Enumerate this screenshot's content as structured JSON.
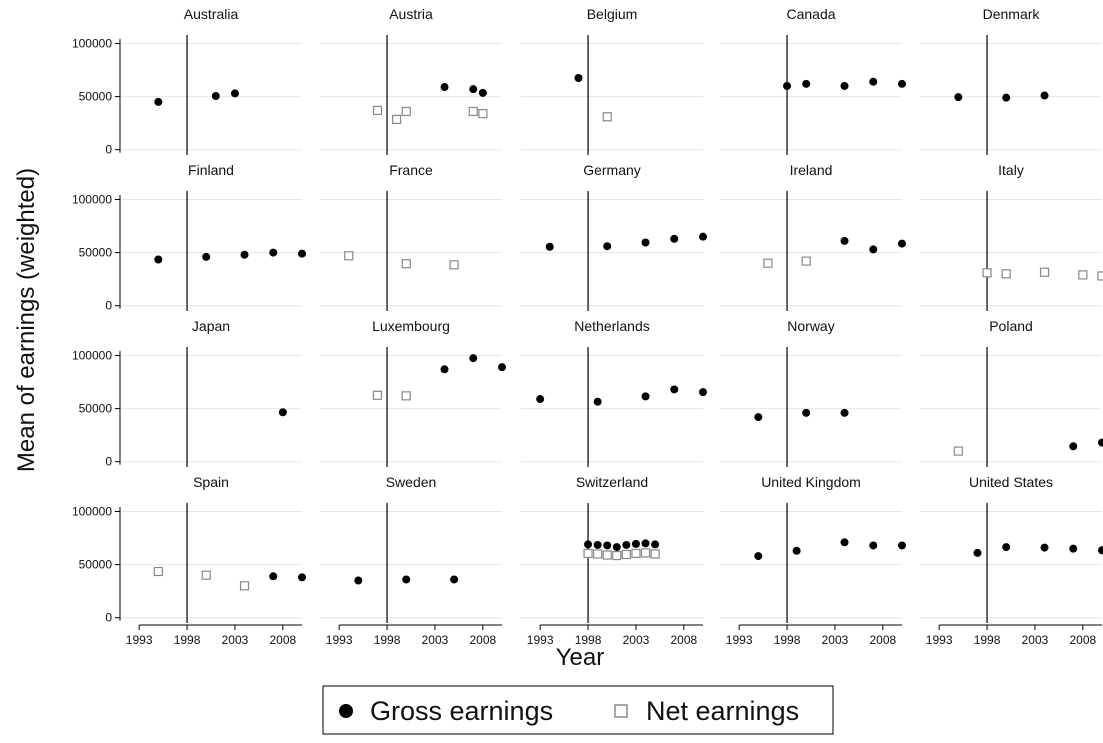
{
  "chart_data": {
    "type": "scatter",
    "layout": "small-multiples 4x5",
    "xlabel": "Year",
    "ylabel": "Mean of earnings (weighted)",
    "xlim": [
      1991,
      2010
    ],
    "ylim": [
      -5000,
      108000
    ],
    "xticks": [
      1993,
      1998,
      2003,
      2008
    ],
    "yticks": [
      0,
      50000,
      100000
    ],
    "grid": "horizontal at y ticks",
    "reference_line_x": 1998,
    "legend": {
      "position": "bottom",
      "entries": [
        {
          "label": "Gross earnings",
          "marker": "filled-circle",
          "color": "#000000"
        },
        {
          "label": "Net earnings",
          "marker": "hollow-square",
          "color": "#888888"
        }
      ]
    },
    "panels": [
      {
        "country": "Australia",
        "gross": [
          [
            1995,
            45000
          ],
          [
            2001,
            50500
          ],
          [
            2003,
            53000
          ]
        ],
        "net": []
      },
      {
        "country": "Austria",
        "gross": [
          [
            2004,
            59000
          ],
          [
            2007,
            57000
          ],
          [
            2008,
            53500
          ]
        ],
        "net": [
          [
            1997,
            37000
          ],
          [
            1999,
            28500
          ],
          [
            2000,
            36000
          ],
          [
            2007,
            36000
          ],
          [
            2008,
            34000
          ]
        ]
      },
      {
        "country": "Belgium",
        "gross": [
          [
            1997,
            67500
          ]
        ],
        "net": [
          [
            2000,
            31000
          ]
        ]
      },
      {
        "country": "Canada",
        "gross": [
          [
            1998,
            60000
          ],
          [
            2000,
            62000
          ],
          [
            2004,
            60000
          ],
          [
            2007,
            64000
          ],
          [
            2010,
            62000
          ]
        ],
        "net": []
      },
      {
        "country": "Denmark",
        "gross": [
          [
            1995,
            49500
          ],
          [
            2000,
            49000
          ],
          [
            2004,
            51000
          ]
        ],
        "net": []
      },
      {
        "country": "Finland",
        "gross": [
          [
            1995,
            43500
          ],
          [
            2000,
            46000
          ],
          [
            2004,
            48000
          ],
          [
            2007,
            50000
          ],
          [
            2010,
            49000
          ]
        ],
        "net": []
      },
      {
        "country": "France",
        "gross": [],
        "net": [
          [
            1994,
            47000
          ],
          [
            2000,
            39500
          ],
          [
            2005,
            38500
          ]
        ]
      },
      {
        "country": "Germany",
        "gross": [
          [
            1994,
            55500
          ],
          [
            2000,
            56000
          ],
          [
            2004,
            59500
          ],
          [
            2007,
            63000
          ],
          [
            2010,
            65000
          ]
        ],
        "net": []
      },
      {
        "country": "Ireland",
        "gross": [
          [
            2004,
            61000
          ],
          [
            2007,
            53000
          ],
          [
            2010,
            58500
          ]
        ],
        "net": [
          [
            1996,
            40000
          ],
          [
            2000,
            42000
          ]
        ]
      },
      {
        "country": "Italy",
        "gross": [],
        "net": [
          [
            1998,
            31000
          ],
          [
            2000,
            30000
          ],
          [
            2004,
            31500
          ],
          [
            2008,
            29000
          ],
          [
            2010,
            28000
          ]
        ]
      },
      {
        "country": "Japan",
        "gross": [
          [
            2008,
            46500
          ]
        ],
        "net": []
      },
      {
        "country": "Luxembourg",
        "gross": [
          [
            2004,
            87000
          ],
          [
            2007,
            97500
          ],
          [
            2010,
            89000
          ]
        ],
        "net": [
          [
            1997,
            62500
          ],
          [
            2000,
            62000
          ]
        ]
      },
      {
        "country": "Netherlands",
        "gross": [
          [
            1993,
            59000
          ],
          [
            1999,
            56500
          ],
          [
            2004,
            61500
          ],
          [
            2007,
            68000
          ],
          [
            2010,
            65500
          ]
        ],
        "net": []
      },
      {
        "country": "Norway",
        "gross": [
          [
            1995,
            42000
          ],
          [
            2000,
            46000
          ],
          [
            2004,
            46000
          ]
        ],
        "net": []
      },
      {
        "country": "Poland",
        "gross": [
          [
            2007,
            14500
          ],
          [
            2010,
            18000
          ]
        ],
        "net": [
          [
            1995,
            10000
          ]
        ]
      },
      {
        "country": "Spain",
        "gross": [
          [
            2007,
            39000
          ],
          [
            2010,
            38000
          ]
        ],
        "net": [
          [
            1995,
            43500
          ],
          [
            2000,
            40000
          ],
          [
            2004,
            30000
          ]
        ]
      },
      {
        "country": "Sweden",
        "gross": [
          [
            1995,
            35000
          ],
          [
            2000,
            36000
          ],
          [
            2005,
            36000
          ]
        ],
        "net": []
      },
      {
        "country": "Switzerland",
        "gross": [
          [
            1998,
            69000
          ],
          [
            1999,
            68500
          ],
          [
            2000,
            68000
          ],
          [
            2001,
            66500
          ],
          [
            2002,
            68500
          ],
          [
            2003,
            69500
          ],
          [
            2004,
            70000
          ],
          [
            2005,
            69000
          ]
        ],
        "net": [
          [
            1998,
            60500
          ],
          [
            1999,
            60000
          ],
          [
            2000,
            59000
          ],
          [
            2001,
            58500
          ],
          [
            2002,
            59500
          ],
          [
            2003,
            60500
          ],
          [
            2004,
            61000
          ],
          [
            2005,
            60000
          ]
        ]
      },
      {
        "country": "United Kingdom",
        "gross": [
          [
            1995,
            58000
          ],
          [
            1999,
            63000
          ],
          [
            2004,
            71000
          ],
          [
            2007,
            68000
          ],
          [
            2010,
            68000
          ]
        ],
        "net": []
      },
      {
        "country": "United States",
        "gross": [
          [
            1997,
            61000
          ],
          [
            2000,
            66500
          ],
          [
            2004,
            66000
          ],
          [
            2007,
            65000
          ],
          [
            2010,
            63500
          ]
        ],
        "net": []
      }
    ]
  }
}
